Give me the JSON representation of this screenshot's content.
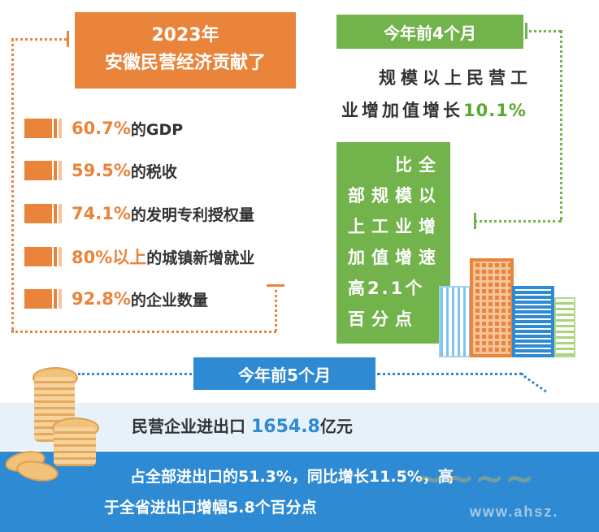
{
  "top_left": {
    "title_line1": "2023年",
    "title_line2": "安徽民营经济贡献了",
    "stats": [
      {
        "value": "60.7%",
        "label": "的GDP"
      },
      {
        "value": "59.5%",
        "label": "的税收"
      },
      {
        "value": "74.1%",
        "label": "的发明专利授权量"
      },
      {
        "value": "80%以上",
        "label": "的城镇新增就业"
      },
      {
        "value": "92.8%",
        "label": "的企业数量"
      }
    ]
  },
  "top_right": {
    "tag": "今年前4个月",
    "text_line1": "规模以上民营工",
    "text_line2_prefix": "业增加值增长",
    "text_line2_value": "10.1%",
    "box_lines": [
      "比全",
      "部规模以",
      "上工业增",
      "加值增速",
      "高2.1个",
      "百分点"
    ]
  },
  "bottom": {
    "tag": "今年前5个月",
    "line1_prefix": "民营企业进出口",
    "line1_value": "1654.8",
    "line1_suffix": "亿元",
    "line2": "占全部进出口的51.3%，同比增长11.5%，高",
    "line3": "于全省进出口增幅5.8个百分点"
  },
  "watermark": {
    "text": "www.ahsz."
  },
  "colors": {
    "orange": "#e9843a",
    "green": "#72b34b",
    "blue": "#2e8ad2",
    "light_blue": "#e6f1fa",
    "coin": "#f2c27a"
  }
}
